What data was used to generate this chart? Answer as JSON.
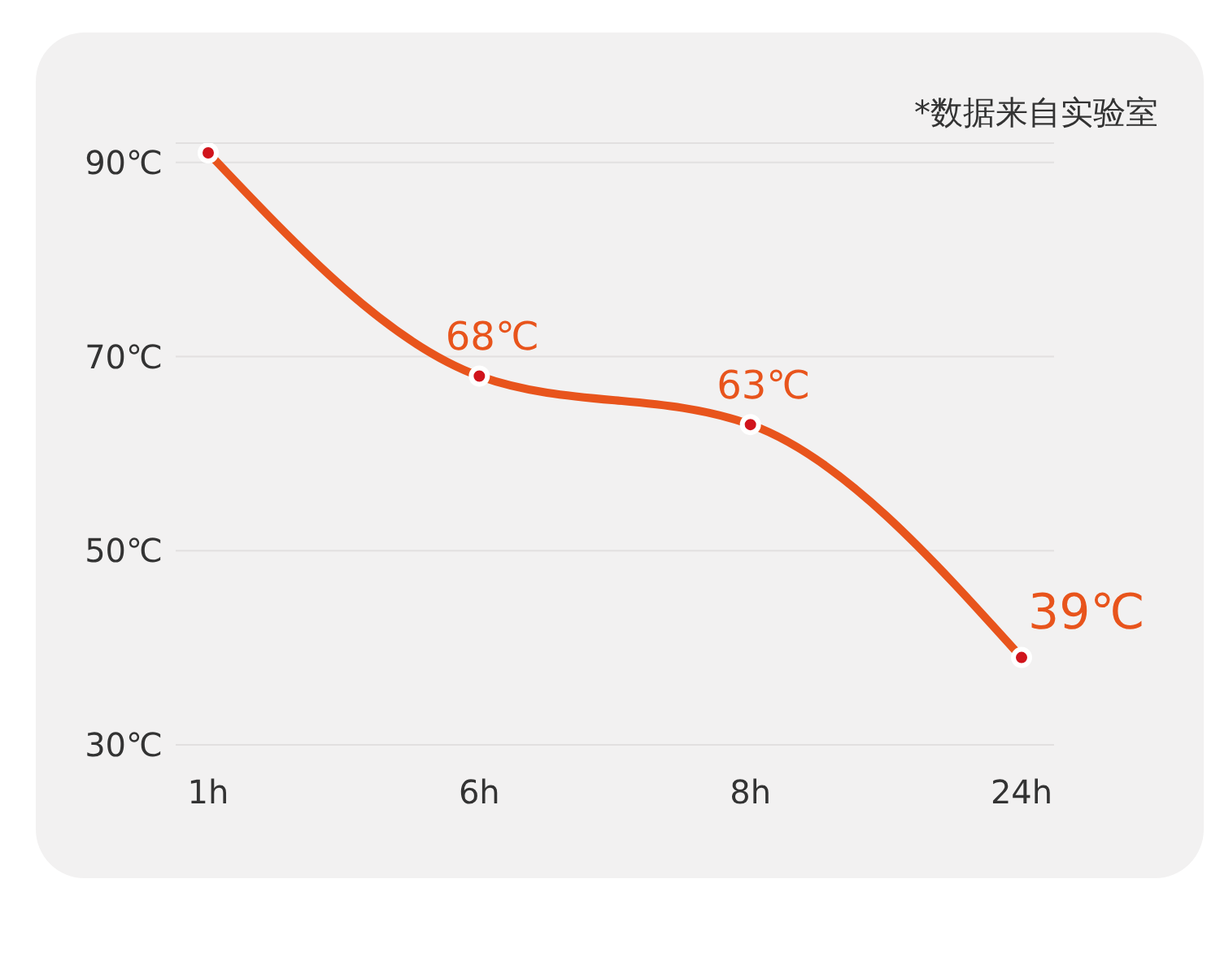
{
  "chart_data": {
    "type": "line",
    "annotations": [
      "*数据来自实验室"
    ],
    "categories": [
      "1h",
      "6h",
      "8h",
      "24h"
    ],
    "series": [
      {
        "color": "#e8541c",
        "values": [
          91,
          68,
          63,
          39
        ],
        "value_labels": [
          null,
          "68℃",
          "63℃",
          "39℃"
        ]
      }
    ],
    "ylim": [
      30,
      92
    ],
    "yticks": [
      {
        "value": 30,
        "label": "30℃"
      },
      {
        "value": 50,
        "label": "50℃"
      },
      {
        "value": 70,
        "label": "70℃"
      },
      {
        "value": 90,
        "label": "90℃"
      }
    ],
    "grid": "y",
    "marker": "circle",
    "line_style": "solid"
  }
}
